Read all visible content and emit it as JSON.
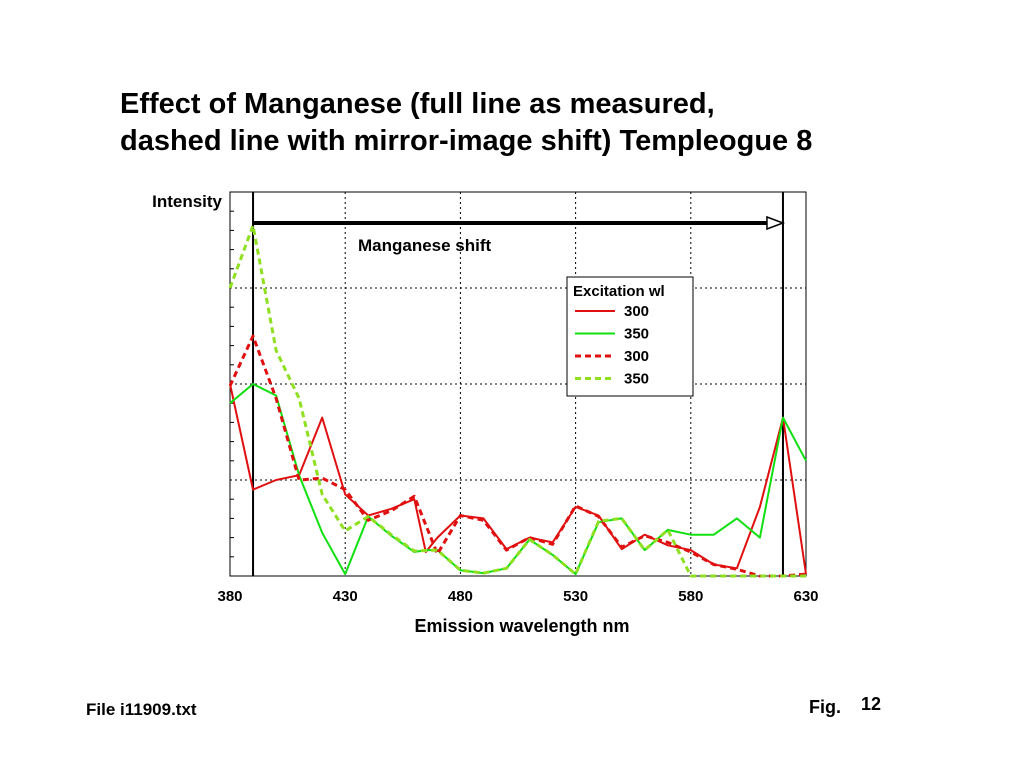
{
  "title_line1": "Effect of Manganese (full line as measured,",
  "title_line2": "dashed line with mirror-image shift)  Templeogue 8",
  "footer": {
    "file": "File i11909.txt",
    "fig_label": "Fig.",
    "fig_number": "12"
  },
  "chart_data": {
    "type": "line",
    "title": "",
    "xlabel": "Emission wavelength  nm",
    "ylabel": "Intensity",
    "xlim": [
      380,
      630
    ],
    "ylim": [
      0,
      4
    ],
    "x_ticks": [
      "380",
      "430",
      "480",
      "530",
      "580",
      "630"
    ],
    "grid": true,
    "annotation": {
      "text": "Manganese shift",
      "arrow_from_x": 390,
      "arrow_to_x": 620
    },
    "vertical_markers_x": [
      390,
      620
    ],
    "legend": {
      "title": "Excitation wl",
      "position": "top-right"
    },
    "colors": {
      "red": "#e01010",
      "green": "#10e010",
      "lightgreen": "#8ee020"
    },
    "series": [
      {
        "name": "300",
        "style": "solid",
        "color": "#e01010",
        "x": [
          380,
          390,
          400,
          410,
          420,
          430,
          440,
          450,
          460,
          465,
          470,
          480,
          490,
          500,
          510,
          520,
          530,
          540,
          550,
          560,
          570,
          580,
          590,
          600,
          610,
          620,
          630
        ],
        "y": [
          2.0,
          0.9,
          1.0,
          1.05,
          1.65,
          0.85,
          0.63,
          0.7,
          0.8,
          0.25,
          0.4,
          0.63,
          0.6,
          0.28,
          0.4,
          0.35,
          0.72,
          0.63,
          0.28,
          0.43,
          0.32,
          0.27,
          0.12,
          0.08,
          0.72,
          1.65,
          0.02
        ]
      },
      {
        "name": "350",
        "style": "solid",
        "color": "#10e010",
        "x": [
          380,
          390,
          400,
          410,
          420,
          430,
          440,
          450,
          460,
          465,
          470,
          480,
          490,
          500,
          510,
          520,
          530,
          540,
          550,
          560,
          570,
          580,
          590,
          600,
          610,
          620,
          630
        ],
        "y": [
          1.8,
          2.0,
          1.88,
          1.05,
          0.45,
          0.02,
          0.62,
          0.42,
          0.25,
          0.27,
          0.27,
          0.06,
          0.03,
          0.08,
          0.38,
          0.22,
          0.02,
          0.56,
          0.6,
          0.27,
          0.48,
          0.43,
          0.43,
          0.6,
          0.4,
          1.65,
          1.2
        ]
      },
      {
        "name": "300",
        "style": "dashed",
        "color": "#e01010",
        "x": [
          380,
          390,
          400,
          410,
          420,
          430,
          440,
          450,
          460,
          470,
          480,
          490,
          500,
          510,
          520,
          530,
          540,
          550,
          560,
          570,
          580,
          590,
          600,
          610,
          620,
          630
        ],
        "y": [
          1.98,
          2.5,
          1.85,
          1.0,
          1.02,
          0.9,
          0.58,
          0.68,
          0.83,
          0.23,
          0.63,
          0.58,
          0.27,
          0.4,
          0.33,
          0.73,
          0.62,
          0.3,
          0.42,
          0.35,
          0.25,
          0.12,
          0.07,
          0.0,
          0.0,
          0.02
        ]
      },
      {
        "name": "350",
        "style": "dashed",
        "color": "#8ee020",
        "x": [
          380,
          390,
          400,
          410,
          420,
          430,
          440,
          450,
          460,
          470,
          480,
          490,
          500,
          510,
          520,
          530,
          540,
          550,
          560,
          570,
          580,
          590,
          600,
          610,
          620,
          630
        ],
        "y": [
          3.0,
          3.65,
          2.35,
          1.85,
          0.85,
          0.47,
          0.62,
          0.43,
          0.26,
          0.27,
          0.06,
          0.03,
          0.08,
          0.38,
          0.22,
          0.02,
          0.57,
          0.6,
          0.27,
          0.48,
          0.0,
          0.0,
          0.0,
          0.0,
          0.0,
          0.0
        ]
      }
    ]
  }
}
